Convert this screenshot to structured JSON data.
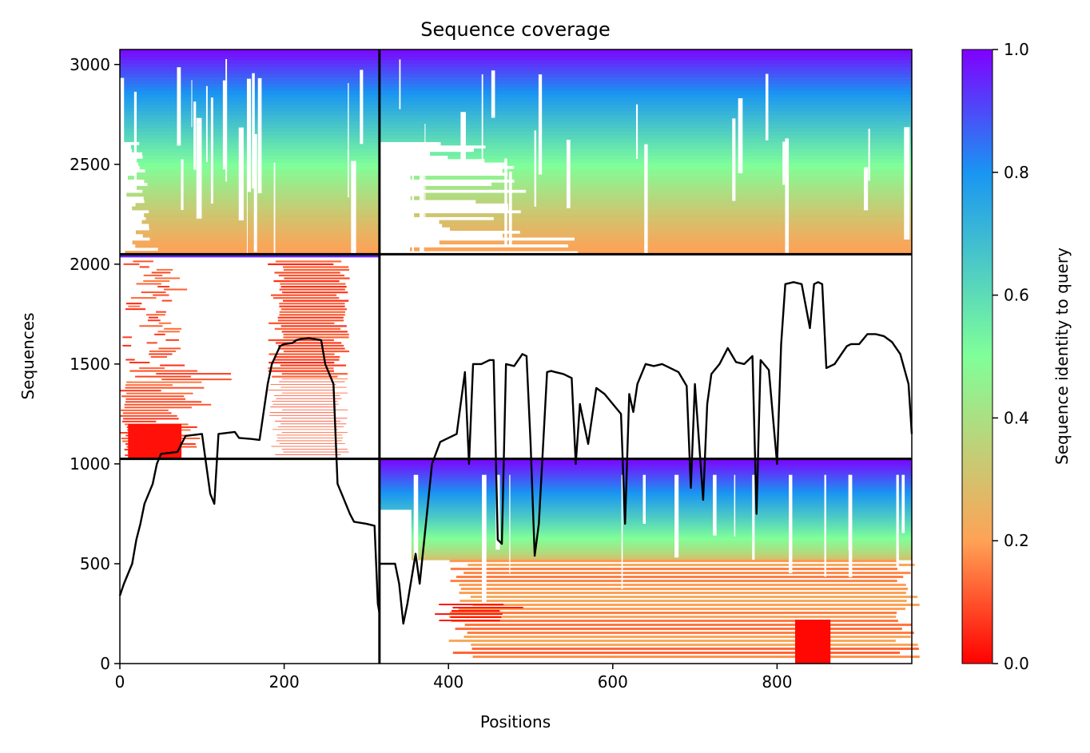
{
  "chart_data": {
    "type": "heatmap",
    "title": "Sequence coverage",
    "xlabel": "Positions",
    "ylabel": "Sequences",
    "xlim": [
      0,
      964
    ],
    "ylim": [
      0,
      3075
    ],
    "xticks": [
      0,
      200,
      400,
      600,
      800
    ],
    "yticks": [
      0,
      500,
      1000,
      1500,
      2000,
      2500,
      3000
    ],
    "colorbar": {
      "label": "Sequence identity to query",
      "range": [
        0,
        1
      ],
      "ticks": [
        "0.0",
        "0.2",
        "0.4",
        "0.6",
        "0.8",
        "1.0"
      ],
      "colormap": "rainbow_r",
      "stops": [
        "#ff0000",
        "#ffa256",
        "#80ff99",
        "#1995f2",
        "#8000ff"
      ]
    },
    "chain_boundaries": {
      "x": [
        316
      ],
      "y": [
        1025,
        2050
      ]
    },
    "blocks": [
      {
        "x": [
          0,
          316
        ],
        "y": [
          2050,
          3075
        ],
        "identity_range": [
          0.2,
          1.0
        ],
        "filled": true
      },
      {
        "x": [
          316,
          964
        ],
        "y": [
          2050,
          3075
        ],
        "identity_range": [
          0.2,
          1.0
        ],
        "filled": true
      },
      {
        "x": [
          0,
          316
        ],
        "y": [
          1025,
          2050
        ],
        "identity_range": [
          0.0,
          1.0
        ],
        "filled": "partial"
      },
      {
        "x": [
          316,
          964
        ],
        "y": [
          1025,
          2050
        ],
        "identity_range": null,
        "filled": false
      },
      {
        "x": [
          0,
          316
        ],
        "y": [
          0,
          1025
        ],
        "identity_range": null,
        "filled": false
      },
      {
        "x": [
          316,
          964
        ],
        "y": [
          0,
          1025
        ],
        "identity_range": [
          0.0,
          1.0
        ],
        "filled": "partial"
      }
    ],
    "series": [
      {
        "type": "line",
        "color": "#000000",
        "x": [
          0,
          5,
          15,
          20,
          25,
          30,
          40,
          45,
          50,
          70,
          75,
          80,
          90,
          100,
          105,
          110,
          115,
          120,
          130,
          140,
          145,
          160,
          170,
          180,
          185,
          195,
          200,
          210,
          215,
          220,
          230,
          245,
          250,
          260,
          265,
          270,
          275,
          280,
          285,
          300,
          310,
          314,
          316
        ],
        "y": [
          340,
          400,
          500,
          620,
          700,
          800,
          900,
          1000,
          1050,
          1060,
          1100,
          1140,
          1145,
          1150,
          1000,
          850,
          800,
          1150,
          1155,
          1160,
          1130,
          1125,
          1120,
          1400,
          1500,
          1590,
          1600,
          1605,
          1620,
          1625,
          1630,
          1620,
          1500,
          1400,
          900,
          850,
          800,
          750,
          710,
          700,
          690,
          300,
          250
        ]
      },
      {
        "type": "line",
        "color": "#000000",
        "x": [
          316,
          335,
          340,
          345,
          350,
          360,
          365,
          370,
          380,
          390,
          400,
          410,
          420,
          425,
          430,
          440,
          450,
          455,
          460,
          465,
          470,
          480,
          490,
          495,
          500,
          505,
          510,
          520,
          525,
          530,
          540,
          550,
          555,
          560,
          570,
          580,
          590,
          600,
          610,
          615,
          620,
          625,
          630,
          640,
          650,
          660,
          670,
          680,
          690,
          695,
          700,
          710,
          715,
          720,
          730,
          740,
          750,
          760,
          770,
          775,
          780,
          790,
          800,
          805,
          810,
          820,
          830,
          840,
          845,
          850,
          855,
          860,
          870,
          880,
          885,
          890,
          900,
          910,
          920,
          930,
          940,
          950,
          960,
          964
        ],
        "y": [
          500,
          500,
          400,
          200,
          300,
          550,
          400,
          600,
          1000,
          1110,
          1130,
          1150,
          1460,
          1000,
          1500,
          1500,
          1520,
          1520,
          620,
          600,
          1500,
          1490,
          1550,
          1540,
          1100,
          540,
          700,
          1460,
          1465,
          1460,
          1450,
          1430,
          1000,
          1300,
          1100,
          1380,
          1350,
          1300,
          1250,
          700,
          1350,
          1260,
          1400,
          1500,
          1490,
          1500,
          1480,
          1460,
          1390,
          880,
          1400,
          820,
          1300,
          1450,
          1500,
          1580,
          1510,
          1500,
          1540,
          750,
          1520,
          1470,
          1000,
          1600,
          1900,
          1910,
          1900,
          1680,
          1900,
          1910,
          1900,
          1480,
          1500,
          1560,
          1590,
          1600,
          1600,
          1650,
          1650,
          1640,
          1610,
          1550,
          1400,
          1150
        ]
      }
    ]
  }
}
